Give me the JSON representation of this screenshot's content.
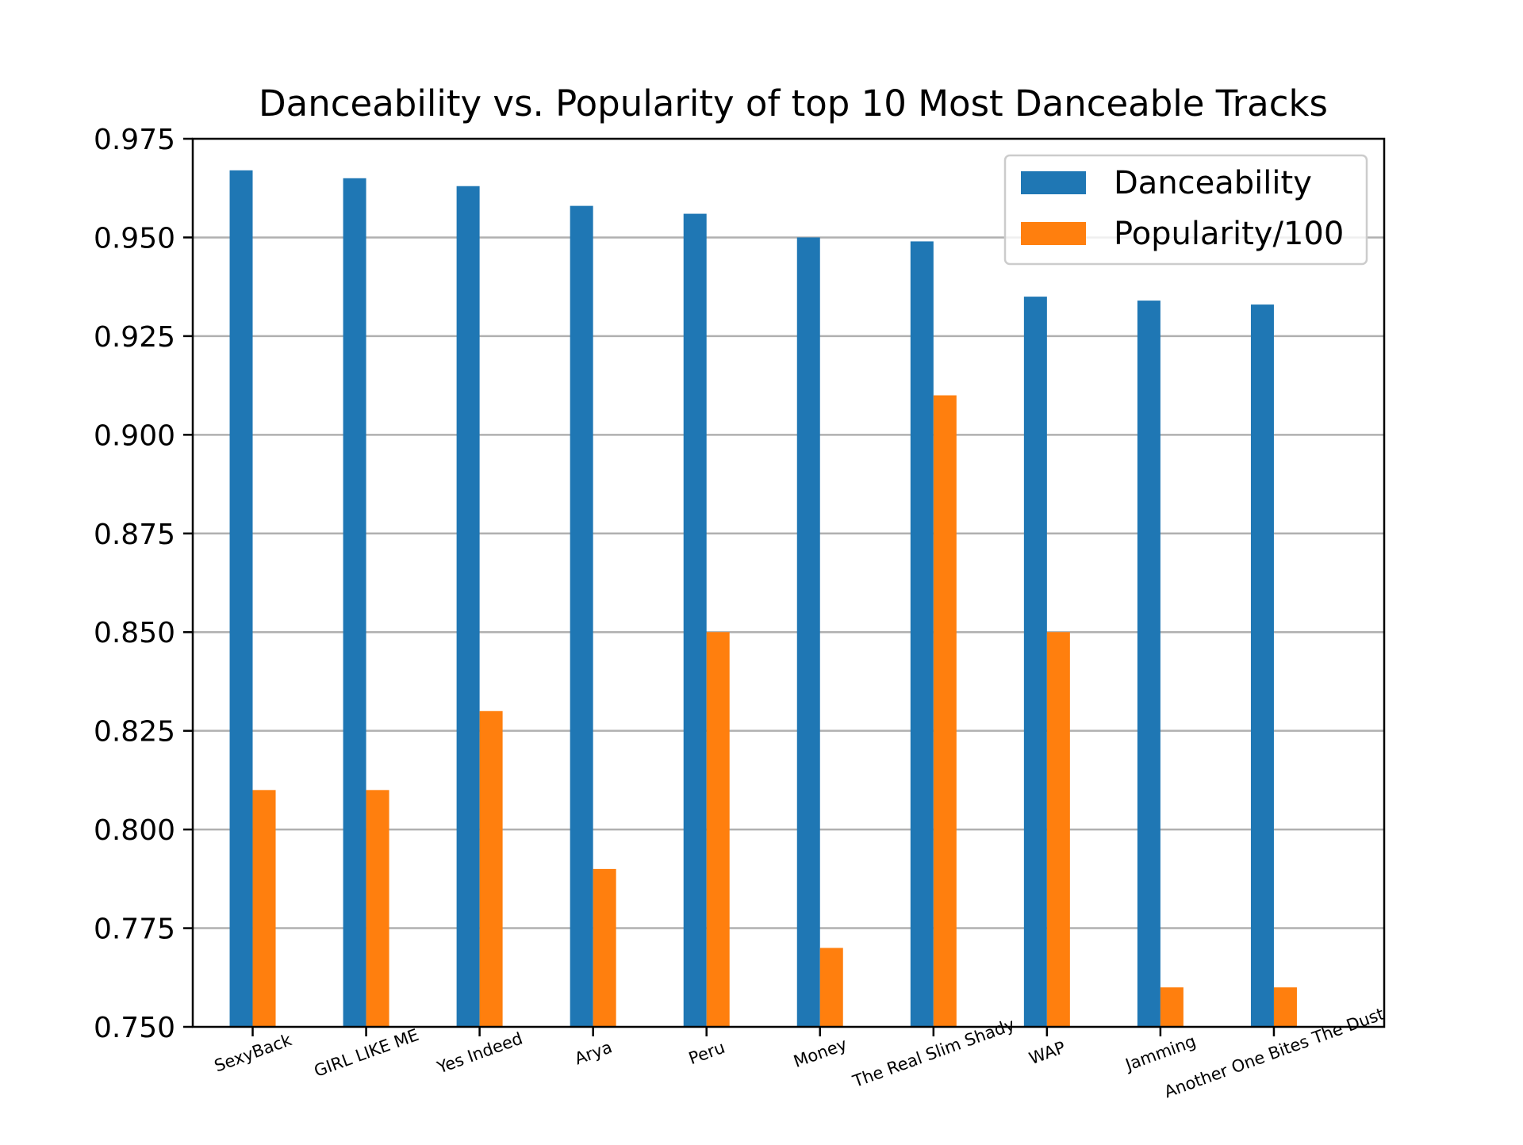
{
  "chart_data": {
    "type": "bar",
    "title": "Danceability vs. Popularity of top 10 Most Danceable Tracks",
    "xlabel": "",
    "ylabel": "",
    "categories": [
      "SexyBack",
      "GIRL LIKE ME",
      "Yes Indeed",
      "Arya",
      "Peru",
      "Money",
      "The Real Slim Shady",
      "WAP",
      "Jamming",
      "Another One Bites The Dust"
    ],
    "series": [
      {
        "name": "Danceability",
        "color": "#1f77b4",
        "values": [
          0.967,
          0.965,
          0.963,
          0.958,
          0.956,
          0.95,
          0.949,
          0.935,
          0.934,
          0.933
        ]
      },
      {
        "name": "Popularity/100",
        "color": "#ff7f0e",
        "values": [
          0.81,
          0.81,
          0.83,
          0.79,
          0.85,
          0.77,
          0.91,
          0.85,
          0.76,
          0.76
        ]
      }
    ],
    "ylim": [
      0.75,
      0.975
    ],
    "yticks": [
      "0.750",
      "0.775",
      "0.800",
      "0.825",
      "0.850",
      "0.875",
      "0.900",
      "0.925",
      "0.950",
      "0.975"
    ],
    "grid": "horizontal",
    "legend": "top-right",
    "xtick_rotation": 20
  }
}
